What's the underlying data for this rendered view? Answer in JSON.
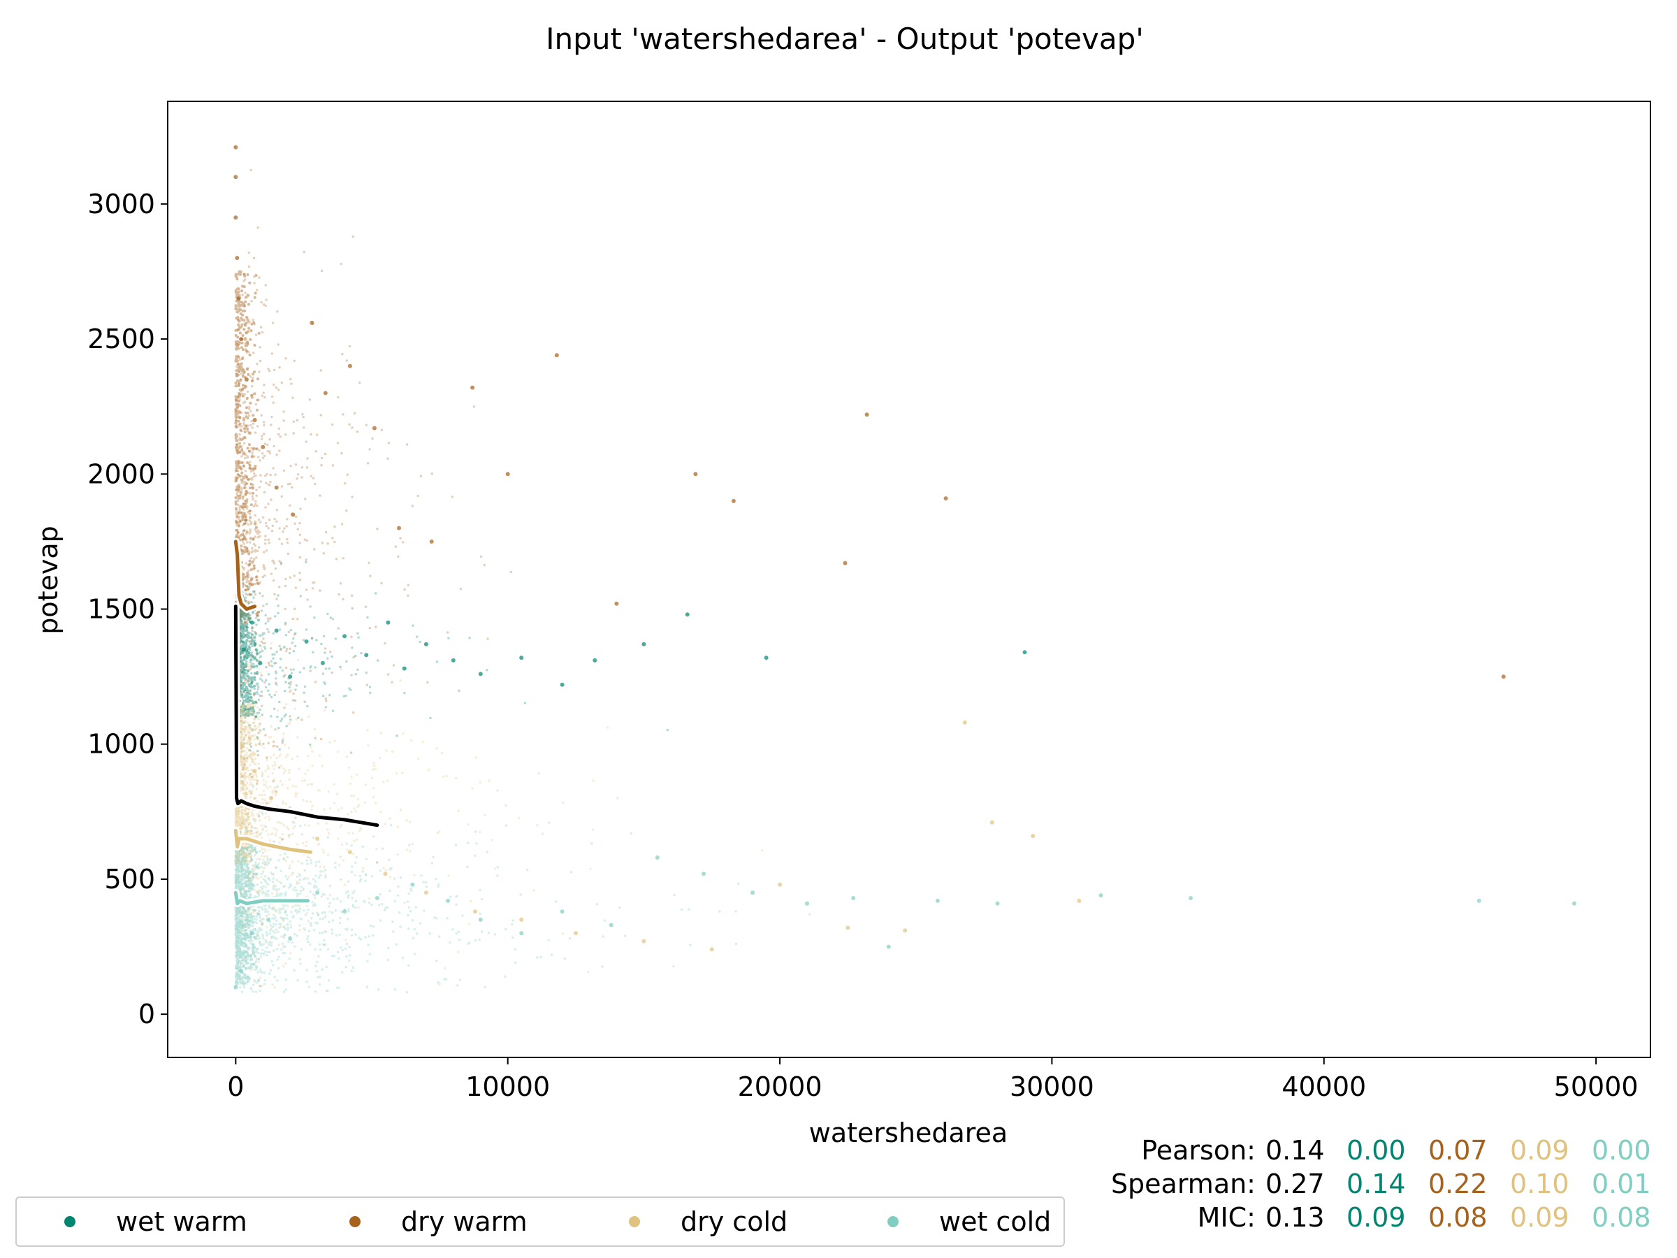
{
  "chart_data": {
    "type": "scatter",
    "title": "Input 'watershedarea' - Output 'potevap'",
    "xlabel": "watershedarea",
    "ylabel": "potevap",
    "xlim": [
      -2500,
      52000
    ],
    "ylim": [
      -160,
      3380
    ],
    "xticks": [
      0,
      10000,
      20000,
      30000,
      40000,
      50000
    ],
    "yticks": [
      0,
      500,
      1000,
      1500,
      2000,
      2500,
      3000
    ],
    "grid": false,
    "legend_position": "bottom-left",
    "series": [
      {
        "name": "wet warm",
        "color": "#018571",
        "points": [
          [
            300,
            1350
          ],
          [
            600,
            1450
          ],
          [
            900,
            1300
          ],
          [
            1500,
            1420
          ],
          [
            2000,
            1250
          ],
          [
            2600,
            1380
          ],
          [
            3200,
            1300
          ],
          [
            4000,
            1400
          ],
          [
            4800,
            1330
          ],
          [
            5600,
            1450
          ],
          [
            6200,
            1280
          ],
          [
            7000,
            1370
          ],
          [
            8000,
            1310
          ],
          [
            9000,
            1260
          ],
          [
            10500,
            1320
          ],
          [
            12000,
            1220
          ],
          [
            13200,
            1310
          ],
          [
            15000,
            1370
          ],
          [
            16600,
            1480
          ],
          [
            19500,
            1320
          ],
          [
            29000,
            1340
          ]
        ],
        "trend": [
          [
            0,
            1240
          ],
          [
            20,
            1180
          ],
          [
            60,
            1150
          ],
          [
            120,
            1160
          ]
        ]
      },
      {
        "name": "dry warm",
        "color": "#a6611a",
        "points": [
          [
            0,
            3210
          ],
          [
            0,
            3100
          ],
          [
            0,
            2950
          ],
          [
            50,
            2800
          ],
          [
            100,
            2650
          ],
          [
            200,
            2500
          ],
          [
            400,
            2350
          ],
          [
            700,
            2200
          ],
          [
            1000,
            2100
          ],
          [
            1500,
            1950
          ],
          [
            2100,
            1850
          ],
          [
            2800,
            2560
          ],
          [
            3300,
            2300
          ],
          [
            4200,
            2400
          ],
          [
            5100,
            2170
          ],
          [
            6000,
            1800
          ],
          [
            7200,
            1750
          ],
          [
            8700,
            2320
          ],
          [
            10000,
            2000
          ],
          [
            11800,
            2440
          ],
          [
            14000,
            1520
          ],
          [
            16900,
            2000
          ],
          [
            18300,
            1900
          ],
          [
            22400,
            1670
          ],
          [
            23200,
            2220
          ],
          [
            26100,
            1910
          ],
          [
            46600,
            1250
          ]
        ],
        "trend": [
          [
            0,
            1750
          ],
          [
            60,
            1700
          ],
          [
            120,
            1550
          ],
          [
            200,
            1520
          ],
          [
            400,
            1500
          ],
          [
            700,
            1510
          ]
        ]
      },
      {
        "name": "dry cold",
        "color": "#dfc27d",
        "points": [
          [
            200,
            1000
          ],
          [
            700,
            900
          ],
          [
            1300,
            800
          ],
          [
            2000,
            760
          ],
          [
            3000,
            650
          ],
          [
            4200,
            600
          ],
          [
            5500,
            520
          ],
          [
            7000,
            450
          ],
          [
            8800,
            380
          ],
          [
            10500,
            350
          ],
          [
            12500,
            300
          ],
          [
            15000,
            270
          ],
          [
            17500,
            240
          ],
          [
            20000,
            480
          ],
          [
            22500,
            320
          ],
          [
            24600,
            310
          ],
          [
            26800,
            1080
          ],
          [
            27800,
            710
          ],
          [
            29300,
            660
          ],
          [
            31000,
            420
          ]
        ],
        "trend": [
          [
            0,
            680
          ],
          [
            60,
            620
          ],
          [
            120,
            650
          ],
          [
            400,
            650
          ],
          [
            1000,
            630
          ],
          [
            2000,
            610
          ],
          [
            2750,
            600
          ]
        ]
      },
      {
        "name": "wet cold",
        "color": "#80cdc1",
        "points": [
          [
            0,
            100
          ],
          [
            200,
            160
          ],
          [
            600,
            300
          ],
          [
            1200,
            350
          ],
          [
            2000,
            280
          ],
          [
            3000,
            450
          ],
          [
            4000,
            380
          ],
          [
            5200,
            430
          ],
          [
            6500,
            480
          ],
          [
            7800,
            420
          ],
          [
            9000,
            350
          ],
          [
            10500,
            300
          ],
          [
            12000,
            380
          ],
          [
            13800,
            330
          ],
          [
            15500,
            580
          ],
          [
            17200,
            520
          ],
          [
            19000,
            450
          ],
          [
            21000,
            410
          ],
          [
            22700,
            430
          ],
          [
            24000,
            250
          ],
          [
            25800,
            420
          ],
          [
            28000,
            410
          ],
          [
            31800,
            440
          ],
          [
            35100,
            430
          ],
          [
            45700,
            420
          ],
          [
            49200,
            410
          ]
        ],
        "trend": [
          [
            0,
            450
          ],
          [
            60,
            410
          ],
          [
            150,
            420
          ],
          [
            400,
            410
          ],
          [
            1000,
            420
          ],
          [
            2000,
            420
          ],
          [
            2650,
            420
          ]
        ]
      }
    ],
    "overall_trend": {
      "color": "#000000",
      "points": [
        [
          0,
          1510
        ],
        [
          10,
          1300
        ],
        [
          20,
          1100
        ],
        [
          30,
          800
        ],
        [
          80,
          780
        ],
        [
          200,
          790
        ],
        [
          400,
          780
        ],
        [
          700,
          770
        ],
        [
          1200,
          760
        ],
        [
          2000,
          750
        ],
        [
          3000,
          730
        ],
        [
          4000,
          720
        ],
        [
          5200,
          700
        ]
      ]
    },
    "stats": [
      {
        "label": "Pearson:",
        "values": [
          "0.14",
          "0.00",
          "0.07",
          "0.09",
          "0.00"
        ]
      },
      {
        "label": "Spearman:",
        "values": [
          "0.27",
          "0.14",
          "0.22",
          "0.10",
          "0.01"
        ]
      },
      {
        "label": "MIC:",
        "values": [
          "0.13",
          "0.09",
          "0.08",
          "0.09",
          "0.08"
        ]
      }
    ]
  }
}
